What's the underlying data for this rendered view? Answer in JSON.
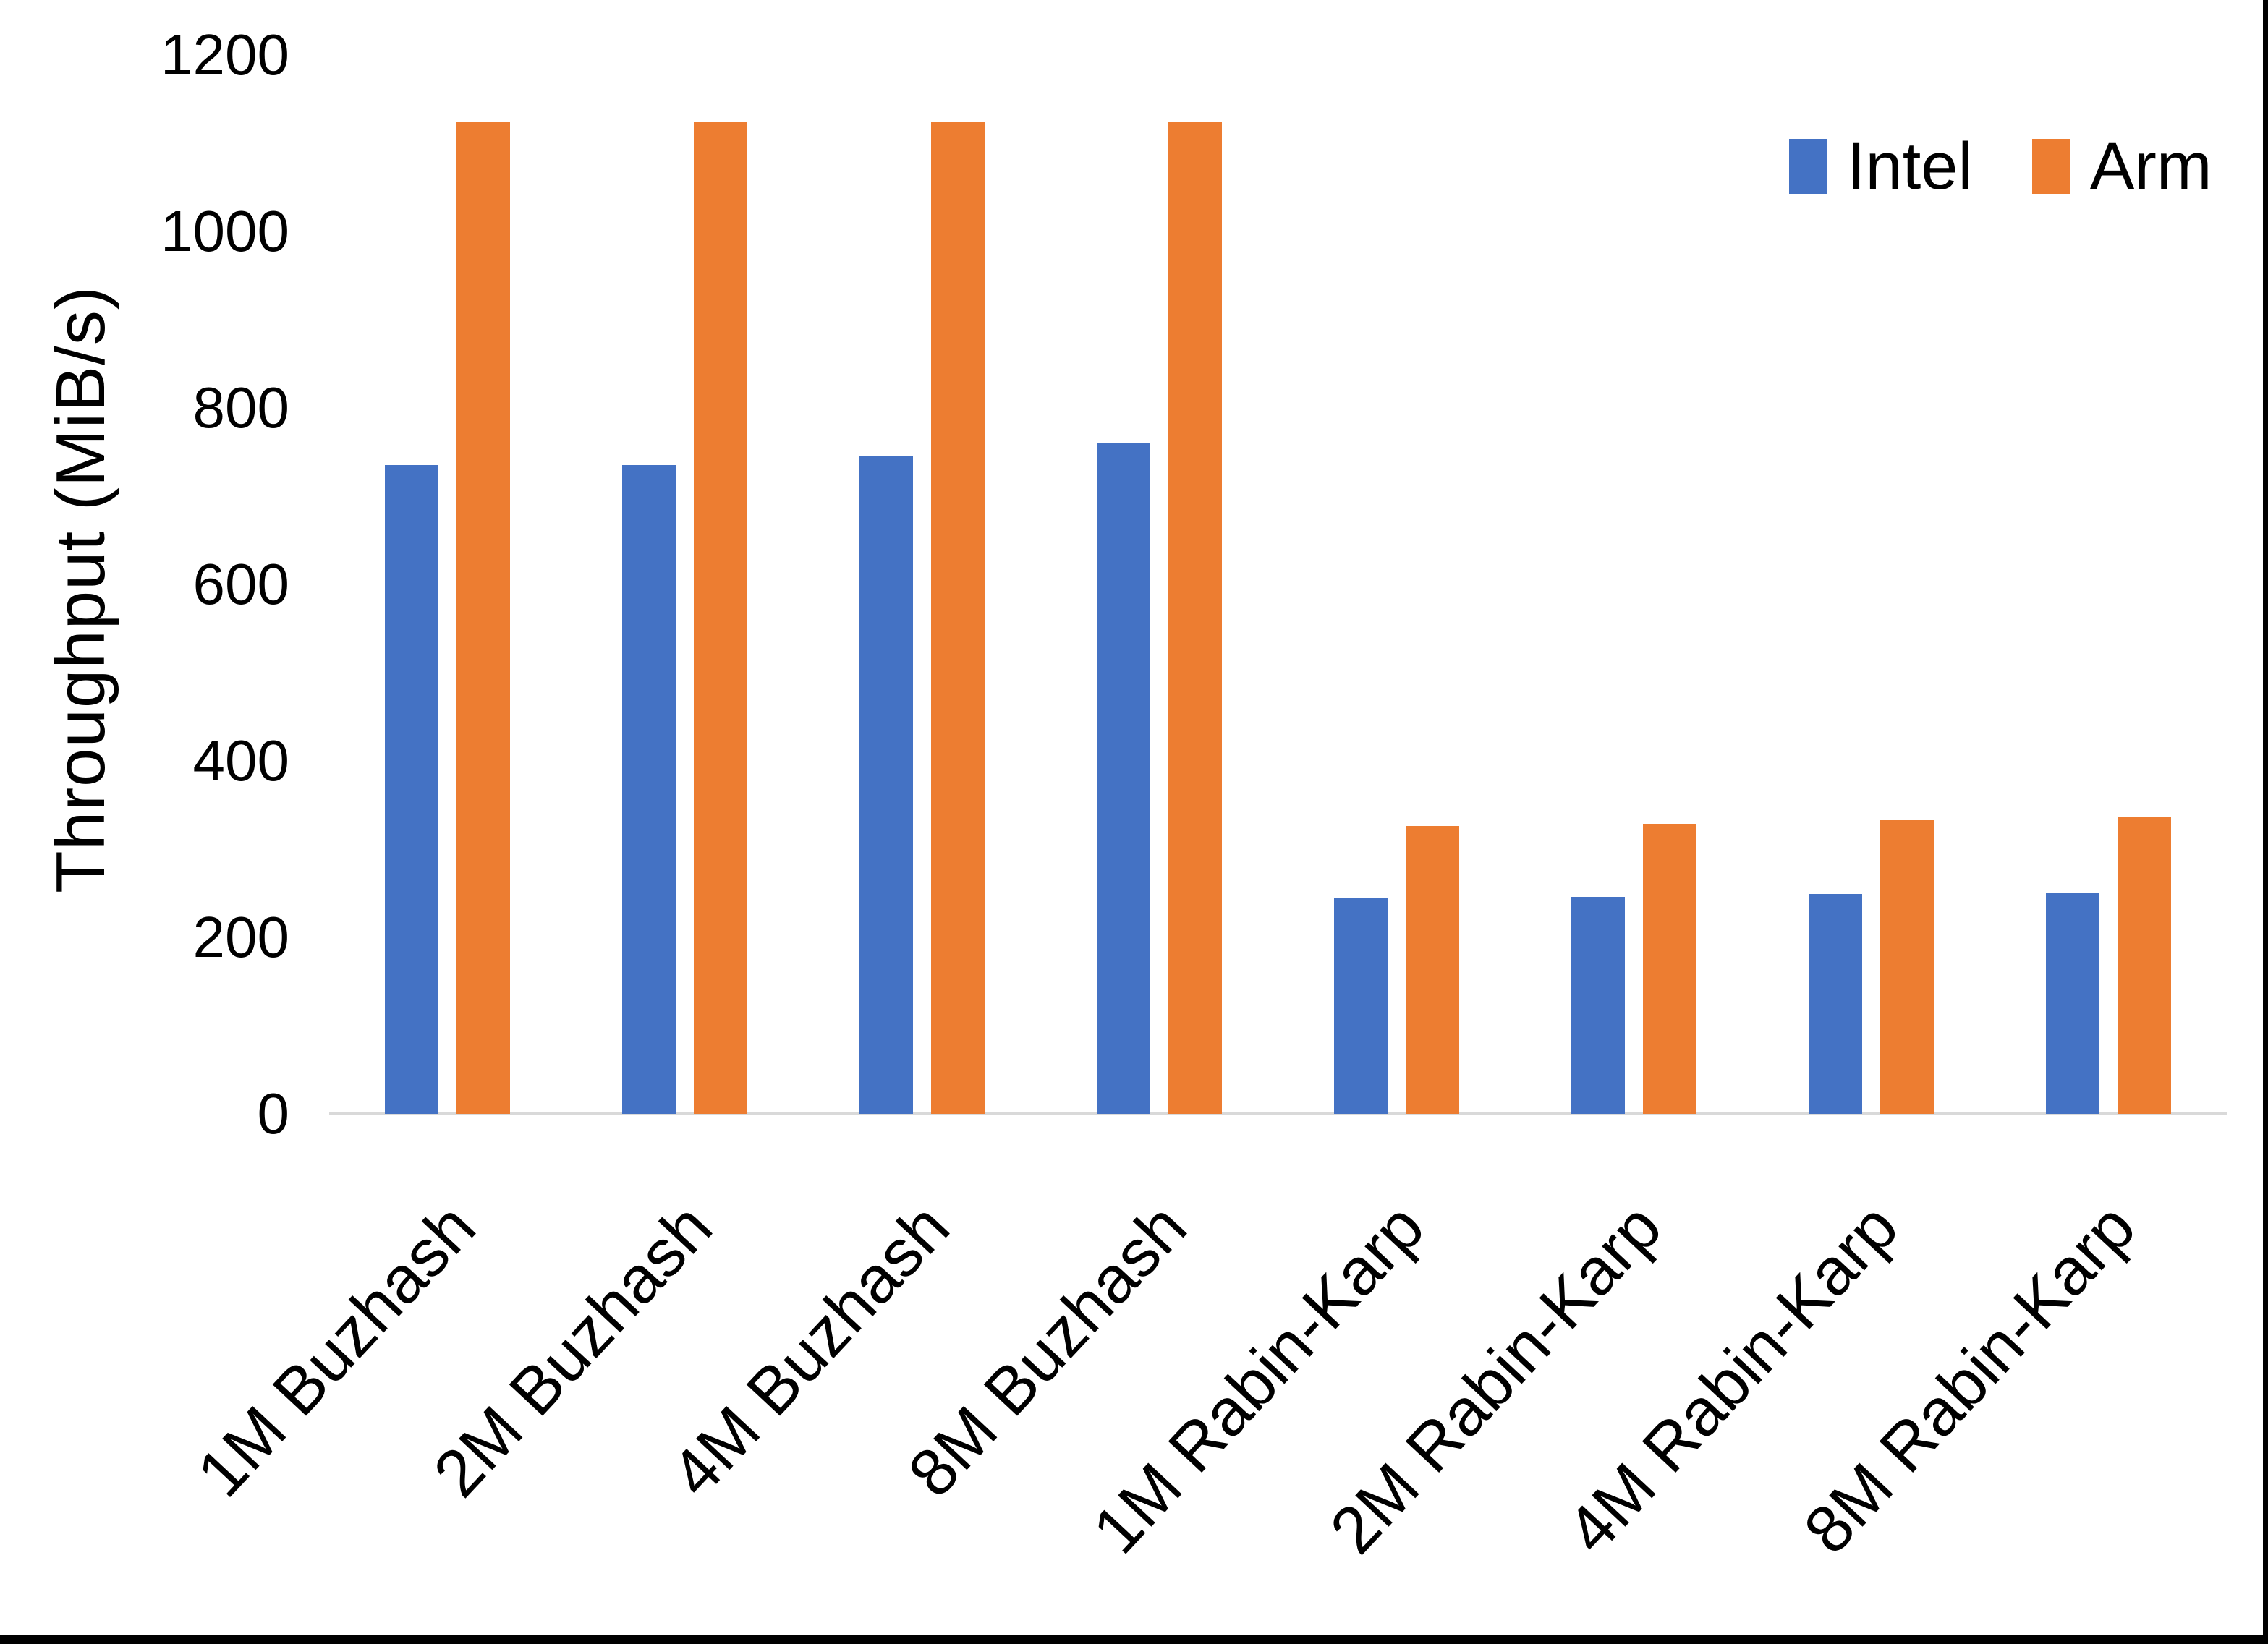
{
  "chart_data": {
    "type": "bar",
    "title": "",
    "xlabel": "",
    "ylabel": "Throughput (MiB/s)",
    "ylim": [
      0,
      1200
    ],
    "yticks": [
      0,
      200,
      400,
      600,
      800,
      1000,
      1200
    ],
    "grid": false,
    "legend_position": "top-right",
    "categories": [
      "1M Buzhash",
      "2M Buzhash",
      "4M Buzhash",
      "8M Buzhash",
      "1M Rabin-Karp",
      "2M Rabin-Karp",
      "4M Rabin-Karp",
      "8M Rabin-Karp"
    ],
    "series": [
      {
        "name": "Intel",
        "color": "#4472C4",
        "values": [
          735,
          735,
          745,
          760,
          245,
          246,
          249,
          250
        ]
      },
      {
        "name": "Arm",
        "color": "#ED7D31",
        "values": [
          1125,
          1125,
          1125,
          1125,
          326,
          329,
          333,
          336
        ]
      }
    ],
    "axis_line_color": "#D9D9D9",
    "text_color": "#000000",
    "background_color": "#FFFFFF"
  }
}
